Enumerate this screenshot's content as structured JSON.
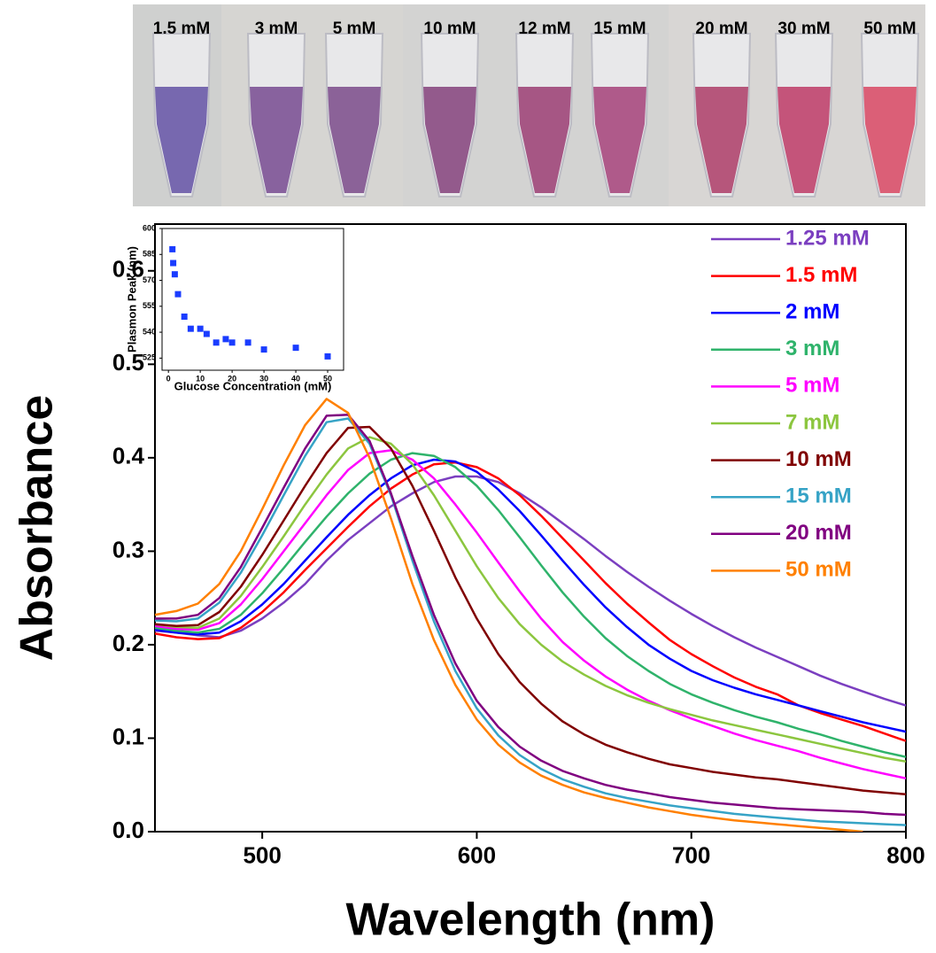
{
  "photo_labels": [
    "1.5 mM",
    "3 mM",
    "5 mM",
    "10 mM",
    "12 mM",
    "15 mM",
    "20 mM",
    "30 mM",
    "50 mM"
  ],
  "chart_data": [
    {
      "type": "line",
      "x_label": "Wavelength (nm)",
      "y_label": "Absorbance",
      "xlim": [
        450,
        800
      ],
      "ylim": [
        0,
        0.65
      ],
      "xticks": [
        500,
        600,
        700,
        800
      ],
      "yticks": [
        {
          "value": 0,
          "label": "0.0"
        },
        0.1,
        0.2,
        0.3,
        0.4,
        0.5,
        0.6
      ],
      "legend": "upper right",
      "x": [
        450,
        460,
        470,
        480,
        490,
        500,
        510,
        520,
        530,
        540,
        550,
        560,
        570,
        580,
        590,
        600,
        610,
        620,
        630,
        640,
        650,
        660,
        670,
        680,
        690,
        700,
        710,
        720,
        730,
        740,
        750,
        760,
        770,
        780,
        790,
        800
      ],
      "series": [
        {
          "name": "1.25 mM",
          "color": "#7b3fc0",
          "values": [
            0.215,
            0.213,
            0.21,
            0.208,
            0.215,
            0.228,
            0.245,
            0.265,
            0.29,
            0.312,
            0.33,
            0.348,
            0.362,
            0.374,
            0.38,
            0.38,
            0.374,
            0.362,
            0.347,
            0.33,
            0.313,
            0.295,
            0.278,
            0.262,
            0.247,
            0.233,
            0.22,
            0.208,
            0.197,
            0.187,
            0.177,
            0.167,
            0.158,
            0.15,
            0.142,
            0.135
          ]
        },
        {
          "name": "1.5 mM",
          "color": "#ff0000",
          "values": [
            0.212,
            0.208,
            0.206,
            0.207,
            0.218,
            0.235,
            0.256,
            0.28,
            0.303,
            0.326,
            0.348,
            0.367,
            0.382,
            0.393,
            0.395,
            0.39,
            0.378,
            0.36,
            0.338,
            0.314,
            0.29,
            0.266,
            0.244,
            0.224,
            0.205,
            0.19,
            0.177,
            0.165,
            0.155,
            0.147,
            0.135,
            0.127,
            0.12,
            0.113,
            0.105,
            0.097
          ]
        },
        {
          "name": "2 mM",
          "color": "#0000ff",
          "values": [
            0.216,
            0.213,
            0.211,
            0.213,
            0.225,
            0.243,
            0.265,
            0.29,
            0.315,
            0.339,
            0.36,
            0.378,
            0.392,
            0.398,
            0.396,
            0.385,
            0.366,
            0.343,
            0.317,
            0.29,
            0.264,
            0.24,
            0.219,
            0.2,
            0.185,
            0.172,
            0.162,
            0.154,
            0.147,
            0.141,
            0.135,
            0.129,
            0.123,
            0.117,
            0.112,
            0.107
          ]
        },
        {
          "name": "3 mM",
          "color": "#2fb36b",
          "values": [
            0.218,
            0.215,
            0.213,
            0.217,
            0.232,
            0.255,
            0.282,
            0.31,
            0.337,
            0.362,
            0.383,
            0.398,
            0.405,
            0.402,
            0.39,
            0.37,
            0.344,
            0.315,
            0.285,
            0.256,
            0.23,
            0.207,
            0.188,
            0.172,
            0.158,
            0.147,
            0.138,
            0.13,
            0.123,
            0.117,
            0.11,
            0.104,
            0.097,
            0.091,
            0.085,
            0.08
          ]
        },
        {
          "name": "5 mM",
          "color": "#ff00ff",
          "values": [
            0.22,
            0.217,
            0.216,
            0.223,
            0.243,
            0.27,
            0.3,
            0.33,
            0.36,
            0.387,
            0.405,
            0.408,
            0.398,
            0.378,
            0.35,
            0.32,
            0.288,
            0.257,
            0.228,
            0.203,
            0.183,
            0.166,
            0.152,
            0.14,
            0.13,
            0.121,
            0.113,
            0.105,
            0.098,
            0.092,
            0.086,
            0.079,
            0.073,
            0.067,
            0.062,
            0.057
          ]
        },
        {
          "name": "7 mM",
          "color": "#8cc63f",
          "values": [
            0.222,
            0.219,
            0.218,
            0.228,
            0.252,
            0.283,
            0.316,
            0.35,
            0.382,
            0.41,
            0.422,
            0.415,
            0.393,
            0.36,
            0.322,
            0.284,
            0.25,
            0.222,
            0.2,
            0.182,
            0.168,
            0.156,
            0.146,
            0.138,
            0.131,
            0.125,
            0.119,
            0.114,
            0.109,
            0.104,
            0.099,
            0.094,
            0.089,
            0.084,
            0.079,
            0.075
          ]
        },
        {
          "name": "10 mM",
          "color": "#800000",
          "values": [
            0.222,
            0.22,
            0.221,
            0.235,
            0.262,
            0.296,
            0.333,
            0.37,
            0.405,
            0.432,
            0.433,
            0.41,
            0.37,
            0.322,
            0.272,
            0.228,
            0.19,
            0.16,
            0.137,
            0.118,
            0.104,
            0.093,
            0.085,
            0.078,
            0.072,
            0.068,
            0.064,
            0.061,
            0.058,
            0.056,
            0.053,
            0.05,
            0.047,
            0.044,
            0.042,
            0.04
          ]
        },
        {
          "name": "15 mM",
          "color": "#36a3c6",
          "values": [
            0.226,
            0.225,
            0.228,
            0.245,
            0.277,
            0.317,
            0.36,
            0.402,
            0.438,
            0.442,
            0.415,
            0.36,
            0.29,
            0.225,
            0.172,
            0.132,
            0.103,
            0.082,
            0.067,
            0.056,
            0.048,
            0.041,
            0.036,
            0.032,
            0.028,
            0.025,
            0.022,
            0.019,
            0.017,
            0.015,
            0.013,
            0.011,
            0.01,
            0.009,
            0.008,
            0.007
          ]
        },
        {
          "name": "20 mM",
          "color": "#800080",
          "values": [
            0.228,
            0.228,
            0.232,
            0.25,
            0.283,
            0.325,
            0.368,
            0.41,
            0.445,
            0.446,
            0.418,
            0.362,
            0.295,
            0.232,
            0.18,
            0.14,
            0.112,
            0.091,
            0.076,
            0.065,
            0.057,
            0.05,
            0.045,
            0.041,
            0.037,
            0.034,
            0.031,
            0.029,
            0.027,
            0.025,
            0.024,
            0.023,
            0.022,
            0.021,
            0.019,
            0.018
          ]
        },
        {
          "name": "50 mM",
          "color": "#ff8000",
          "values": [
            0.232,
            0.236,
            0.244,
            0.265,
            0.3,
            0.345,
            0.392,
            0.435,
            0.463,
            0.448,
            0.4,
            0.335,
            0.265,
            0.205,
            0.157,
            0.12,
            0.093,
            0.074,
            0.06,
            0.05,
            0.042,
            0.036,
            0.031,
            0.026,
            0.022,
            0.018,
            0.015,
            0.012,
            0.01,
            0.008,
            0.006,
            0.004,
            0.002,
            0.0,
            null,
            null
          ]
        }
      ]
    },
    {
      "type": "scatter",
      "x_label": "Glucose Concentration (mM)",
      "y_label": "Plasmon Peak (nm)",
      "xlim": [
        -2,
        55
      ],
      "ylim": [
        518,
        600
      ],
      "xticks": [
        0,
        10,
        20,
        30,
        40,
        50
      ],
      "yticks": [
        525,
        540,
        555,
        570,
        585,
        600
      ],
      "color": "#1a3cff",
      "x": [
        1.25,
        1.5,
        2,
        3,
        5,
        7,
        10,
        12,
        15,
        18,
        20,
        25,
        30,
        40,
        50
      ],
      "values": [
        588,
        580,
        573.5,
        562,
        549,
        542,
        542,
        539,
        534,
        536,
        534,
        534,
        530,
        531,
        526
      ]
    }
  ]
}
